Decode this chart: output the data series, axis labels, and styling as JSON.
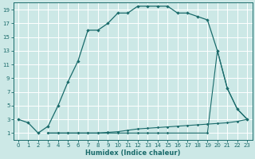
{
  "xlabel": "Humidex (Indice chaleur)",
  "xlim": [
    -0.5,
    23.5
  ],
  "ylim": [
    0,
    20
  ],
  "xticks": [
    0,
    1,
    2,
    3,
    4,
    5,
    6,
    7,
    8,
    9,
    10,
    11,
    12,
    13,
    14,
    15,
    16,
    17,
    18,
    19,
    20,
    21,
    22,
    23
  ],
  "yticks": [
    1,
    3,
    5,
    7,
    9,
    11,
    13,
    15,
    17,
    19
  ],
  "bg_color": "#cce8e6",
  "line_color": "#1a6b6b",
  "grid_color": "#ffffff",
  "line1_x": [
    0,
    1,
    2,
    3,
    4,
    5,
    6,
    7,
    8,
    9,
    10,
    11,
    12,
    13,
    14,
    15,
    16,
    17,
    18,
    19,
    20,
    21,
    22,
    23
  ],
  "line1_y": [
    3,
    2.5,
    1,
    2,
    5,
    8.5,
    11.5,
    16,
    16,
    17,
    18.5,
    18.5,
    19.5,
    19.5,
    19.5,
    19.5,
    18.5,
    18.5,
    18,
    17.5,
    13,
    7.5,
    4.5,
    3
  ],
  "line2_x": [
    3,
    4,
    5,
    6,
    7,
    8,
    9,
    10,
    11,
    12,
    13,
    14,
    15,
    16,
    17,
    18,
    19,
    20,
    21,
    22,
    23
  ],
  "line2_y": [
    1,
    1,
    1,
    1,
    1,
    1,
    1.1,
    1.2,
    1.4,
    1.6,
    1.7,
    1.8,
    1.9,
    2.0,
    2.1,
    2.2,
    2.3,
    2.4,
    2.5,
    2.7,
    3
  ],
  "line3_x": [
    3,
    4,
    5,
    6,
    7,
    8,
    9,
    10,
    11,
    12,
    13,
    14,
    15,
    19,
    20,
    21,
    22,
    23
  ],
  "line3_y": [
    1,
    1,
    1,
    1,
    1,
    1,
    1,
    1,
    1,
    1,
    1,
    1,
    1,
    1,
    13,
    7.5,
    4.5,
    3
  ]
}
